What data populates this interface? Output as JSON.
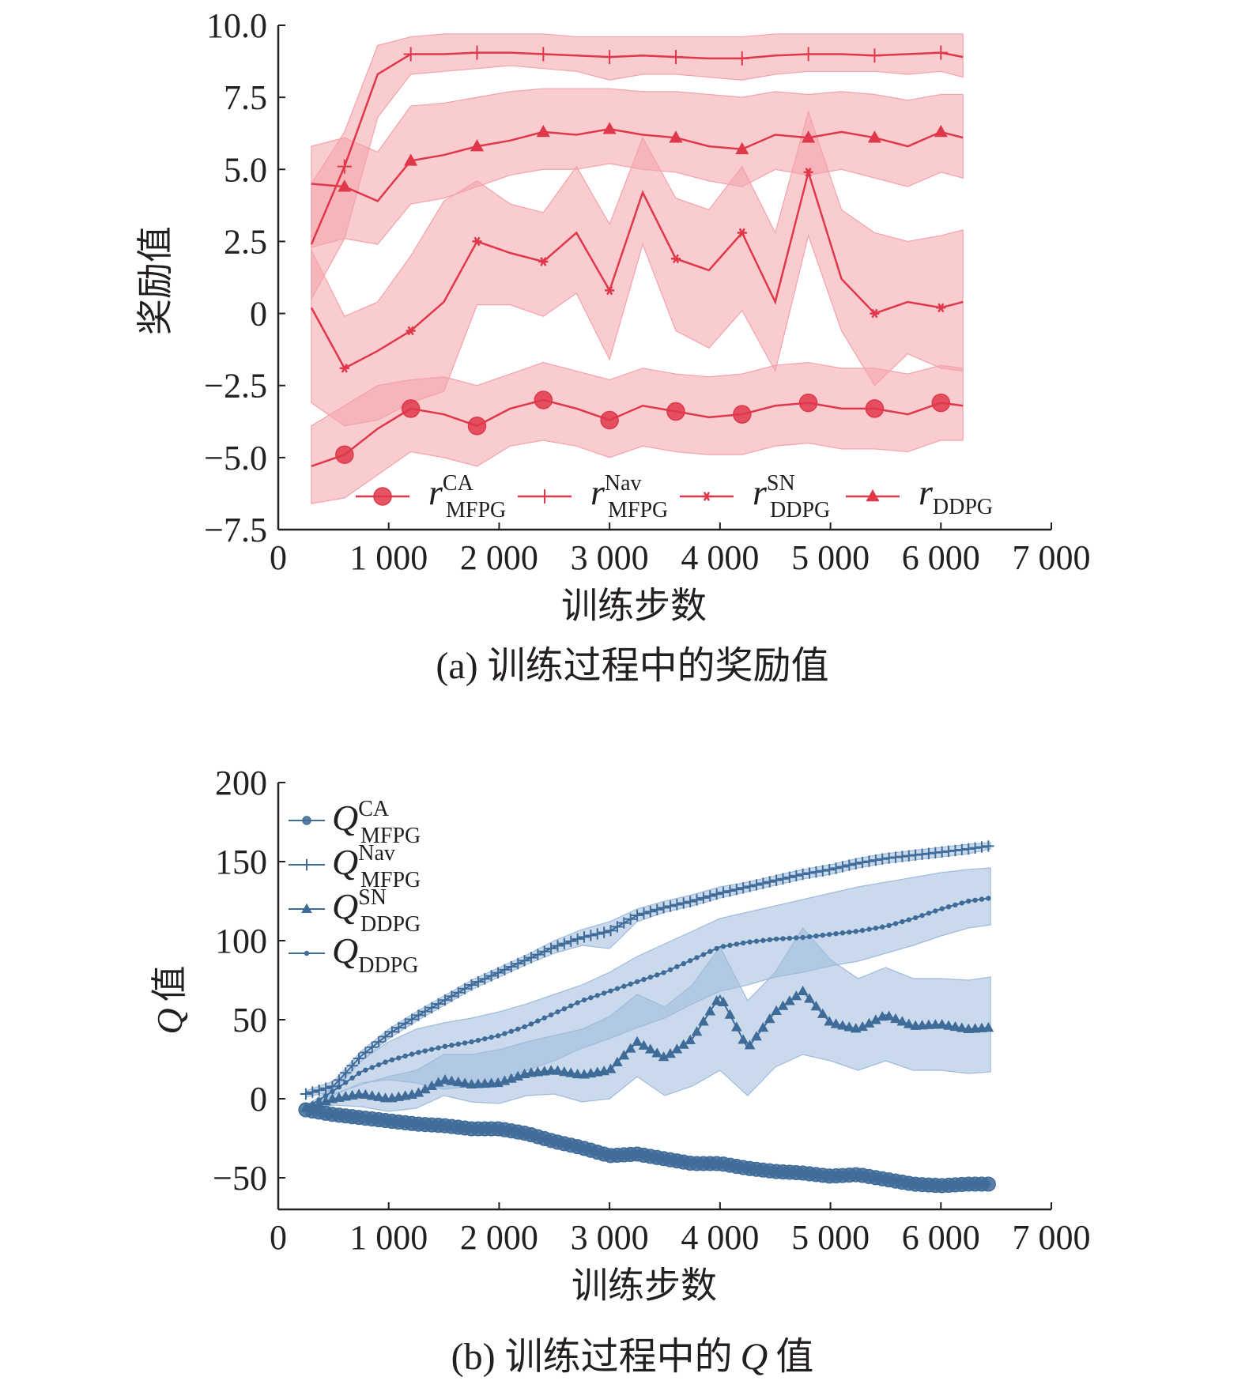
{
  "chart_data": [
    {
      "type": "line",
      "caption": "(a) 训练过程中的奖励值",
      "xlabel": "训练步数",
      "ylabel": "奖励值",
      "xlim": [
        0,
        7000
      ],
      "ylim": [
        -7.5,
        10.0
      ],
      "xticks": [
        0,
        1000,
        2000,
        3000,
        4000,
        5000,
        6000,
        7000
      ],
      "xtick_labels": [
        "0",
        "1 000",
        "2 000",
        "3 000",
        "4 000",
        "5 000",
        "6 000",
        "7 000"
      ],
      "yticks": [
        -7.5,
        -5.0,
        -2.5,
        0,
        2.5,
        5.0,
        7.5,
        10.0
      ],
      "ytick_labels": [
        "−7.5",
        "−5.0",
        "−2.5",
        "0",
        "2.5",
        "5.0",
        "7.5",
        "10.0"
      ],
      "legend_position": "lower-center",
      "color": "#e0374b",
      "band_color": "#f4a3a9",
      "x": [
        300,
        600,
        900,
        1200,
        1500,
        1800,
        2100,
        2400,
        2700,
        3000,
        3300,
        3600,
        3900,
        4200,
        4500,
        4800,
        5100,
        5400,
        5700,
        6000,
        6200
      ],
      "series": [
        {
          "name": "r",
          "sup": "CA",
          "sub": "MFPG",
          "marker": "circle",
          "values": [
            -5.3,
            -4.9,
            -4.0,
            -3.3,
            -3.5,
            -3.9,
            -3.3,
            -3.0,
            -3.3,
            -3.7,
            -3.2,
            -3.4,
            -3.6,
            -3.5,
            -3.2,
            -3.1,
            -3.3,
            -3.3,
            -3.5,
            -3.1,
            -3.2
          ],
          "lower": [
            -6.6,
            -6.4,
            -5.6,
            -4.8,
            -5.0,
            -5.3,
            -4.6,
            -4.4,
            -4.6,
            -5.0,
            -4.6,
            -4.8,
            -4.9,
            -4.9,
            -4.6,
            -4.5,
            -4.7,
            -4.7,
            -4.8,
            -4.4,
            -4.4
          ],
          "upper": [
            -3.9,
            -3.2,
            -2.5,
            -2.3,
            -2.2,
            -2.5,
            -2.1,
            -1.7,
            -2.0,
            -2.3,
            -1.9,
            -2.1,
            -2.2,
            -2.1,
            -1.8,
            -1.7,
            -1.9,
            -1.9,
            -2.1,
            -1.8,
            -1.9
          ],
          "marker_x": [
            600,
            1200,
            1800,
            2400,
            3000,
            3600,
            4200,
            4800,
            5400,
            6000
          ]
        },
        {
          "name": "r",
          "sup": "Nav",
          "sub": "MFPG",
          "marker": "plus",
          "values": [
            2.4,
            5.1,
            8.3,
            9.0,
            9.0,
            9.05,
            9.05,
            9.0,
            8.95,
            8.9,
            8.95,
            8.9,
            8.85,
            8.85,
            8.95,
            9.0,
            9.0,
            8.95,
            9.0,
            9.05,
            8.9
          ],
          "lower": [
            0.5,
            2.6,
            6.8,
            8.3,
            8.4,
            8.5,
            8.6,
            8.5,
            8.4,
            8.1,
            8.3,
            8.3,
            8.2,
            8.1,
            8.3,
            8.4,
            8.4,
            8.4,
            8.3,
            8.4,
            8.2
          ],
          "upper": [
            4.5,
            6.3,
            9.3,
            9.6,
            9.7,
            9.7,
            9.7,
            9.7,
            9.6,
            9.6,
            9.6,
            9.6,
            9.6,
            9.6,
            9.7,
            9.7,
            9.7,
            9.7,
            9.7,
            9.7,
            9.7
          ],
          "marker_x": [
            600,
            1200,
            1800,
            2400,
            3000,
            3600,
            4200,
            4800,
            5400,
            6000
          ]
        },
        {
          "name": "r",
          "sup": "SN",
          "sub": "DDPG",
          "marker": "star",
          "values": [
            0.2,
            -1.9,
            -1.3,
            -0.6,
            0.4,
            2.5,
            2.1,
            1.8,
            2.8,
            0.8,
            4.2,
            1.9,
            1.5,
            2.8,
            0.4,
            4.9,
            1.2,
            0.0,
            0.4,
            0.2,
            0.4
          ],
          "lower": [
            -3.1,
            -3.9,
            -3.7,
            -3.1,
            -2.7,
            0.3,
            0.3,
            -0.1,
            0.7,
            -1.6,
            2.4,
            -0.6,
            -1.2,
            0.1,
            -2.0,
            2.7,
            -0.6,
            -2.5,
            -1.4,
            -1.9,
            -2.0
          ],
          "upper": [
            2.2,
            -0.1,
            0.4,
            2.0,
            3.9,
            4.6,
            3.8,
            3.5,
            5.1,
            3.1,
            6.1,
            4.0,
            3.6,
            5.1,
            2.8,
            7.0,
            3.6,
            2.8,
            2.5,
            2.7,
            2.9
          ],
          "marker_x": [
            600,
            1200,
            1800,
            2400,
            3000,
            3600,
            4200,
            4800,
            5400,
            6000
          ]
        },
        {
          "name": "r",
          "sup": "",
          "sub": "DDPG",
          "marker": "triangle",
          "values": [
            4.5,
            4.4,
            3.9,
            5.3,
            5.5,
            5.8,
            6.0,
            6.3,
            6.2,
            6.4,
            6.2,
            6.1,
            5.8,
            5.7,
            6.2,
            6.1,
            6.3,
            6.1,
            5.8,
            6.3,
            6.1
          ],
          "lower": [
            2.3,
            2.6,
            2.4,
            3.8,
            4.0,
            4.4,
            4.8,
            5.0,
            5.0,
            5.2,
            5.0,
            4.9,
            4.6,
            4.4,
            5.0,
            4.8,
            5.0,
            4.7,
            4.4,
            4.9,
            4.7
          ],
          "upper": [
            5.8,
            6.1,
            5.6,
            7.2,
            7.3,
            7.5,
            7.7,
            7.8,
            7.8,
            7.8,
            7.7,
            7.7,
            7.6,
            7.5,
            7.7,
            7.6,
            7.7,
            7.6,
            7.4,
            7.6,
            7.6
          ],
          "marker_x": [
            600,
            1200,
            1800,
            2400,
            3000,
            3600,
            4200,
            4800,
            5400,
            6000
          ]
        }
      ]
    },
    {
      "type": "line",
      "caption_prefix": "(b) 训练过程中的",
      "caption_italic": "Q",
      "caption_suffix": "值",
      "xlabel": "训练步数",
      "ylabel_italic": "Q",
      "ylabel": "值",
      "xlim": [
        0,
        7000
      ],
      "ylim": [
        -70,
        200
      ],
      "xticks": [
        0,
        1000,
        2000,
        3000,
        4000,
        5000,
        6000,
        7000
      ],
      "xtick_labels": [
        "0",
        "1 000",
        "2 000",
        "3 000",
        "4 000",
        "5 000",
        "6 000",
        "7 000"
      ],
      "yticks": [
        -50,
        0,
        50,
        100,
        150,
        200
      ],
      "ytick_labels": [
        "−50",
        "0",
        "50",
        "100",
        "150",
        "200"
      ],
      "legend_position": "top-left",
      "color": "#3f6b99",
      "band_color": "#9fbbdc",
      "x": [
        250,
        500,
        750,
        1000,
        1250,
        1500,
        1750,
        2000,
        2250,
        2500,
        2750,
        3000,
        3250,
        3500,
        3750,
        4000,
        4250,
        4500,
        4750,
        5000,
        5250,
        5500,
        5750,
        6000,
        6250,
        6450
      ],
      "series": [
        {
          "name": "Q",
          "sup": "CA",
          "sub": "MFPG",
          "marker": "circle",
          "values": [
            -7,
            -10,
            -12,
            -14,
            -16,
            -17,
            -19,
            -19,
            -22,
            -27,
            -31,
            -36,
            -35,
            -38,
            -41,
            -41,
            -44,
            -46,
            -47,
            -49,
            -48,
            -51,
            -54,
            -55,
            -54,
            -54
          ],
          "lower": [
            -8,
            -12,
            -14,
            -16,
            -18,
            -19,
            -21,
            -21,
            -24,
            -29,
            -33,
            -38,
            -37,
            -40,
            -43,
            -43,
            -46,
            -48,
            -49,
            -51,
            -50,
            -53,
            -56,
            -57,
            -56,
            -56
          ],
          "upper": [
            -6,
            -8,
            -10,
            -12,
            -14,
            -15,
            -17,
            -17,
            -20,
            -25,
            -29,
            -34,
            -33,
            -36,
            -39,
            -39,
            -42,
            -44,
            -45,
            -47,
            -46,
            -49,
            -52,
            -53,
            -52,
            -52
          ]
        },
        {
          "name": "Q",
          "sup": "Nav",
          "sub": "MFPG",
          "marker": "plus",
          "values": [
            3,
            8,
            27,
            41,
            52,
            62,
            72,
            80,
            88,
            96,
            102,
            106,
            116,
            121,
            125,
            130,
            134,
            138,
            142,
            145,
            149,
            152,
            154,
            156,
            158,
            160
          ],
          "lower": [
            1,
            5,
            24,
            38,
            49,
            59,
            69,
            77,
            85,
            92,
            97,
            95,
            112,
            118,
            122,
            127,
            131,
            135,
            139,
            142,
            146,
            149,
            151,
            153,
            155,
            158
          ],
          "upper": [
            5,
            11,
            30,
            44,
            55,
            65,
            75,
            83,
            91,
            100,
            107,
            112,
            120,
            125,
            129,
            134,
            137,
            141,
            145,
            148,
            152,
            155,
            157,
            159,
            161,
            162
          ]
        },
        {
          "name": "Q",
          "sup": "SN",
          "sub": "DDPG",
          "marker": "triangle",
          "values": [
            -6,
            0,
            3,
            0,
            3,
            12,
            9,
            10,
            16,
            18,
            15,
            18,
            36,
            26,
            38,
            65,
            32,
            55,
            68,
            48,
            44,
            53,
            46,
            47,
            44,
            45
          ],
          "lower": [
            -7,
            -4,
            -5,
            -8,
            -6,
            2,
            -2,
            -3,
            2,
            3,
            -2,
            0,
            14,
            2,
            8,
            18,
            2,
            20,
            28,
            24,
            18,
            24,
            18,
            18,
            16,
            17
          ],
          "upper": [
            -4,
            3,
            9,
            14,
            18,
            28,
            28,
            31,
            36,
            40,
            44,
            52,
            66,
            58,
            72,
            96,
            62,
            80,
            108,
            88,
            76,
            83,
            76,
            76,
            75,
            77
          ]
        },
        {
          "name": "Q",
          "sup": "",
          "sub": "DDPG",
          "marker": "circle-small",
          "values": [
            -6,
            5,
            17,
            24,
            29,
            33,
            36,
            40,
            46,
            54,
            62,
            68,
            74,
            80,
            88,
            96,
            99,
            101,
            102,
            104,
            106,
            109,
            114,
            120,
            125,
            127
          ],
          "lower": [
            -7,
            2,
            10,
            12,
            10,
            6,
            8,
            12,
            18,
            24,
            32,
            38,
            45,
            51,
            60,
            68,
            72,
            77,
            80,
            84,
            87,
            92,
            97,
            103,
            108,
            110
          ],
          "upper": [
            -5,
            8,
            24,
            36,
            44,
            48,
            51,
            55,
            60,
            66,
            72,
            80,
            90,
            98,
            106,
            114,
            118,
            122,
            126,
            130,
            134,
            137,
            140,
            143,
            145,
            146
          ]
        }
      ]
    }
  ]
}
